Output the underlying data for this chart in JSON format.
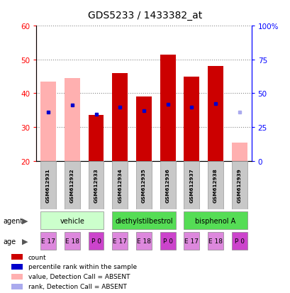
{
  "title": "GDS5233 / 1433382_at",
  "samples": [
    "GSM612931",
    "GSM612932",
    "GSM612933",
    "GSM612934",
    "GSM612935",
    "GSM612936",
    "GSM612937",
    "GSM612938",
    "GSM612939"
  ],
  "bar_values": [
    43.5,
    44.5,
    33.5,
    46.0,
    39.0,
    51.5,
    45.0,
    48.0,
    25.5
  ],
  "bar_colors": [
    "#FFB0B0",
    "#FFB0B0",
    "#CC0000",
    "#CC0000",
    "#CC0000",
    "#CC0000",
    "#CC0000",
    "#CC0000",
    "#FFB0B0"
  ],
  "blue_square_values": [
    34.5,
    36.5,
    33.8,
    35.8,
    34.8,
    36.8,
    35.8,
    37.0,
    34.5
  ],
  "blue_square_absent": [
    false,
    false,
    false,
    false,
    false,
    false,
    false,
    false,
    true
  ],
  "ymin": 20,
  "ymax": 60,
  "y_ticks": [
    20,
    30,
    40,
    50,
    60
  ],
  "y2_ticks_pos": [
    20,
    30,
    40,
    50,
    60
  ],
  "y2_ticks_labels": [
    "0",
    "25",
    "50",
    "75",
    "100%"
  ],
  "agent_groups": [
    {
      "label": "vehicle",
      "span": [
        0,
        2
      ],
      "color": "#CCFFCC"
    },
    {
      "label": "diethylstilbestrol",
      "span": [
        3,
        5
      ],
      "color": "#55DD55"
    },
    {
      "label": "bisphenol A",
      "span": [
        6,
        8
      ],
      "color": "#55DD55"
    }
  ],
  "age_labels": [
    "E 17",
    "E 18",
    "P 0",
    "E 17",
    "E 18",
    "P 0",
    "E 17",
    "E 18",
    "P 0"
  ],
  "age_colors": [
    "#DD88DD",
    "#DD88DD",
    "#CC44CC",
    "#DD88DD",
    "#DD88DD",
    "#CC44CC",
    "#DD88DD",
    "#DD88DD",
    "#CC44CC"
  ],
  "bar_width": 0.65,
  "legend_colors": [
    "#CC0000",
    "#0000CC",
    "#FFB0B0",
    "#AAAAEE"
  ],
  "legend_labels": [
    "count",
    "percentile rank within the sample",
    "value, Detection Call = ABSENT",
    "rank, Detection Call = ABSENT"
  ]
}
